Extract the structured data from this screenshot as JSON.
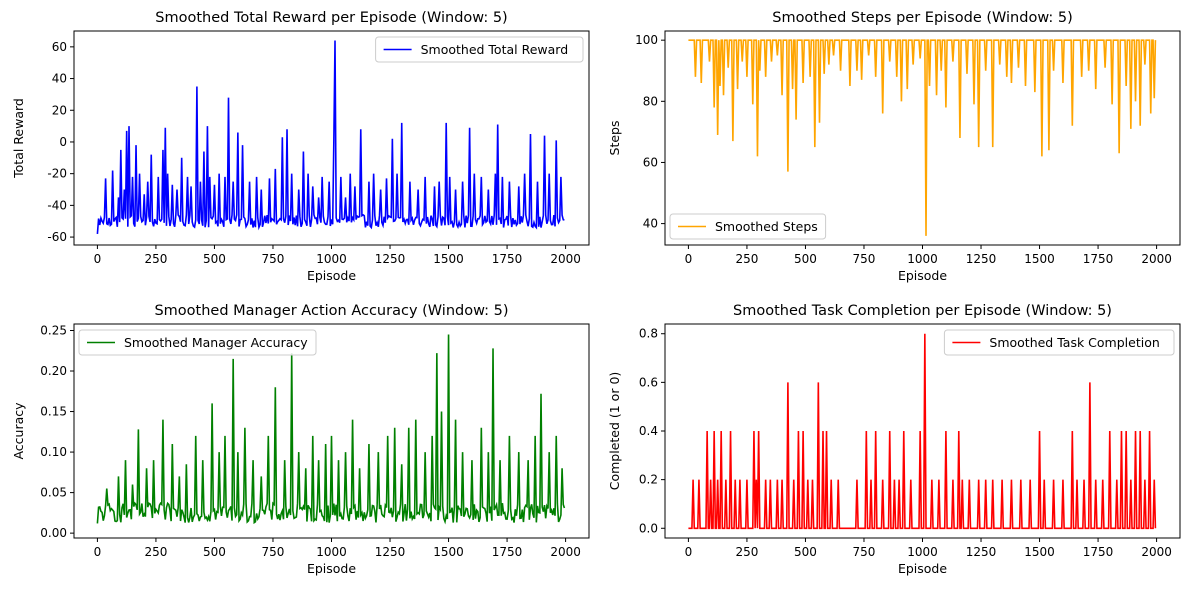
{
  "chart_data": [
    {
      "type": "line",
      "title": "Smoothed Total Reward per Episode (Window: 5)",
      "xlabel": "Episode",
      "ylabel": "Total Reward",
      "xlim": [
        -100,
        2100
      ],
      "ylim": [
        -65,
        70
      ],
      "xticks": [
        0,
        250,
        500,
        750,
        1000,
        1250,
        1500,
        1750,
        2000
      ],
      "yticks": [
        -60,
        -40,
        -20,
        0,
        20,
        40,
        60
      ],
      "legend": "upper right",
      "series": [
        {
          "name": "Smoothed Total Reward",
          "color": "#0000ff",
          "baseline": -50,
          "noise": 4,
          "min": -58,
          "max": 64,
          "x": [
            0,
            20,
            35,
            50,
            65,
            90,
            100,
            115,
            125,
            135,
            150,
            165,
            180,
            200,
            215,
            230,
            260,
            280,
            290,
            300,
            320,
            340,
            360,
            385,
            400,
            425,
            440,
            455,
            470,
            480,
            500,
            520,
            545,
            560,
            580,
            600,
            620,
            650,
            680,
            700,
            735,
            760,
            790,
            810,
            830,
            860,
            880,
            900,
            920,
            945,
            960,
            990,
            1010,
            1015,
            1040,
            1060,
            1080,
            1100,
            1125,
            1160,
            1180,
            1210,
            1235,
            1260,
            1280,
            1300,
            1335,
            1370,
            1400,
            1440,
            1460,
            1490,
            1505,
            1530,
            1560,
            1590,
            1610,
            1640,
            1670,
            1700,
            1710,
            1730,
            1760,
            1800,
            1825,
            1850,
            1880,
            1910,
            1930,
            1960,
            1980,
            1998
          ],
          "y": [
            -58,
            -50,
            -23,
            -48,
            -18,
            -35,
            -5,
            -30,
            7,
            10,
            -22,
            -2,
            -20,
            -33,
            -25,
            -8,
            -22,
            -5,
            9,
            -20,
            -27,
            -30,
            -10,
            -22,
            -28,
            35,
            -25,
            -6,
            10,
            -22,
            -27,
            -20,
            -22,
            28,
            -25,
            6,
            -2,
            -25,
            -22,
            -30,
            -23,
            -17,
            3,
            8,
            -20,
            -30,
            -6,
            -20,
            -28,
            -35,
            -22,
            -25,
            1,
            64,
            -22,
            -35,
            -20,
            -28,
            8,
            -25,
            -20,
            -30,
            -23,
            2,
            -20,
            12,
            -25,
            -30,
            -22,
            -28,
            -25,
            12,
            -22,
            -30,
            -25,
            9,
            -20,
            -22,
            -30,
            -20,
            11,
            -22,
            -25,
            -28,
            -20,
            5,
            -25,
            4,
            -20,
            1,
            -22,
            -20
          ]
        }
      ]
    },
    {
      "type": "line",
      "title": "Smoothed Steps per Episode (Window: 5)",
      "xlabel": "Episode",
      "ylabel": "Steps",
      "xlim": [
        -100,
        2100
      ],
      "ylim": [
        33,
        103
      ],
      "xticks": [
        0,
        250,
        500,
        750,
        1000,
        1250,
        1500,
        1750,
        2000
      ],
      "yticks": [
        40,
        60,
        80,
        100
      ],
      "legend": "lower left",
      "series": [
        {
          "name": "Smoothed Steps",
          "color": "#ffa500",
          "baseline": 100,
          "x": [
            30,
            55,
            90,
            110,
            125,
            135,
            150,
            170,
            190,
            210,
            230,
            250,
            275,
            295,
            305,
            330,
            355,
            380,
            400,
            425,
            445,
            460,
            490,
            520,
            540,
            560,
            580,
            600,
            620,
            650,
            690,
            720,
            740,
            770,
            800,
            830,
            860,
            890,
            910,
            935,
            960,
            990,
            1015,
            1030,
            1060,
            1080,
            1100,
            1130,
            1160,
            1190,
            1220,
            1240,
            1270,
            1300,
            1330,
            1360,
            1380,
            1410,
            1440,
            1480,
            1510,
            1540,
            1560,
            1600,
            1640,
            1680,
            1710,
            1740,
            1780,
            1810,
            1840,
            1870,
            1890,
            1910,
            1930,
            1950,
            1975,
            1990
          ],
          "y": [
            88,
            86,
            93,
            78,
            69,
            85,
            82,
            91,
            67,
            84,
            93,
            88,
            79,
            62,
            90,
            88,
            93,
            95,
            82,
            57,
            84,
            74,
            86,
            88,
            65,
            73,
            89,
            92,
            95,
            90,
            85,
            90,
            87,
            95,
            88,
            76,
            93,
            88,
            80,
            84,
            92,
            94,
            36,
            85,
            82,
            90,
            78,
            93,
            68,
            89,
            79,
            65,
            90,
            65,
            92,
            88,
            86,
            91,
            85,
            83,
            62,
            64,
            90,
            86,
            72,
            88,
            90,
            84,
            91,
            79,
            63,
            85,
            71,
            80,
            72,
            92,
            76,
            81
          ]
        }
      ]
    },
    {
      "type": "line",
      "title": "Smoothed Manager Action Accuracy (Window: 5)",
      "xlabel": "Episode",
      "ylabel": "Accuracy",
      "xlim": [
        -100,
        2100
      ],
      "ylim": [
        -0.006,
        0.258
      ],
      "xticks": [
        0,
        250,
        500,
        750,
        1000,
        1250,
        1500,
        1750,
        2000
      ],
      "yticks": [
        0.0,
        0.05,
        0.1,
        0.15,
        0.2,
        0.25
      ],
      "legend": "upper left",
      "series": [
        {
          "name": "Smoothed Manager Accuracy",
          "color": "#008000",
          "baseline": 0.025,
          "noise": 0.012,
          "min": 0.01,
          "max": 0.245,
          "x": [
            0,
            40,
            90,
            120,
            150,
            175,
            210,
            240,
            280,
            320,
            350,
            380,
            420,
            450,
            490,
            520,
            545,
            580,
            600,
            630,
            665,
            700,
            730,
            760,
            800,
            830,
            860,
            890,
            920,
            945,
            975,
            1000,
            1030,
            1060,
            1090,
            1120,
            1160,
            1200,
            1240,
            1270,
            1300,
            1330,
            1360,
            1400,
            1430,
            1450,
            1470,
            1500,
            1530,
            1560,
            1600,
            1640,
            1670,
            1690,
            1720,
            1760,
            1800,
            1840,
            1870,
            1895,
            1930,
            1960,
            1985,
            1998
          ],
          "y": [
            0.012,
            0.055,
            0.07,
            0.09,
            0.06,
            0.128,
            0.08,
            0.09,
            0.14,
            0.11,
            0.07,
            0.085,
            0.12,
            0.09,
            0.16,
            0.1,
            0.12,
            0.215,
            0.1,
            0.13,
            0.09,
            0.07,
            0.12,
            0.18,
            0.09,
            0.222,
            0.1,
            0.08,
            0.12,
            0.09,
            0.11,
            0.12,
            0.09,
            0.1,
            0.14,
            0.08,
            0.11,
            0.1,
            0.12,
            0.13,
            0.085,
            0.13,
            0.14,
            0.1,
            0.12,
            0.222,
            0.15,
            0.247,
            0.14,
            0.1,
            0.09,
            0.13,
            0.1,
            0.228,
            0.09,
            0.12,
            0.1,
            0.09,
            0.12,
            0.172,
            0.1,
            0.12,
            0.08,
            0.074
          ]
        }
      ]
    },
    {
      "type": "line",
      "title": "Smoothed Task Completion per Episode (Window: 5)",
      "xlabel": "Episode",
      "ylabel": "Completed (1 or 0)",
      "xlim": [
        -100,
        2100
      ],
      "ylim": [
        -0.04,
        0.84
      ],
      "xticks": [
        0,
        250,
        500,
        750,
        1000,
        1250,
        1500,
        1750,
        2000
      ],
      "yticks": [
        0.0,
        0.2,
        0.4,
        0.6,
        0.8
      ],
      "legend": "upper right",
      "series": [
        {
          "name": "Smoothed Task Completion",
          "color": "#ff0000",
          "baseline": 0,
          "x": [
            20,
            45,
            80,
            95,
            110,
            125,
            140,
            160,
            180,
            200,
            220,
            250,
            280,
            290,
            300,
            330,
            350,
            380,
            400,
            425,
            450,
            470,
            490,
            510,
            530,
            555,
            575,
            590,
            610,
            640,
            720,
            760,
            780,
            800,
            830,
            860,
            880,
            900,
            920,
            950,
            990,
            1010,
            1040,
            1070,
            1100,
            1130,
            1155,
            1170,
            1200,
            1240,
            1270,
            1300,
            1340,
            1380,
            1420,
            1460,
            1500,
            1520,
            1560,
            1600,
            1640,
            1660,
            1690,
            1715,
            1740,
            1770,
            1800,
            1830,
            1850,
            1870,
            1890,
            1910,
            1930,
            1950,
            1970,
            1990
          ],
          "y": [
            0.2,
            0.2,
            0.4,
            0.2,
            0.4,
            0.2,
            0.4,
            0.2,
            0.4,
            0.2,
            0.2,
            0.2,
            0.4,
            0.2,
            0.4,
            0.2,
            0.2,
            0.2,
            0.2,
            0.6,
            0.2,
            0.4,
            0.4,
            0.2,
            0.2,
            0.6,
            0.4,
            0.4,
            0.2,
            0.2,
            0.2,
            0.4,
            0.2,
            0.4,
            0.2,
            0.4,
            0.2,
            0.2,
            0.4,
            0.2,
            0.4,
            0.8,
            0.2,
            0.2,
            0.4,
            0.2,
            0.4,
            0.2,
            0.2,
            0.2,
            0.2,
            0.2,
            0.2,
            0.2,
            0.2,
            0.2,
            0.4,
            0.2,
            0.2,
            0.2,
            0.4,
            0.2,
            0.2,
            0.6,
            0.2,
            0.2,
            0.4,
            0.2,
            0.4,
            0.4,
            0.2,
            0.4,
            0.4,
            0.2,
            0.4,
            0.2
          ]
        }
      ]
    }
  ]
}
